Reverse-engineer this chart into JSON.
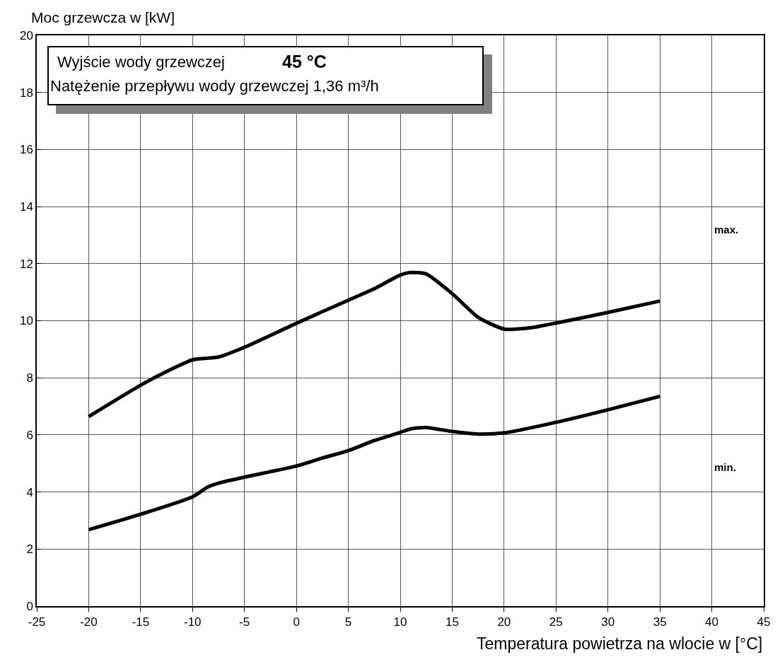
{
  "chart_data": {
    "type": "line",
    "xlabel": "Temperatura powietrza na wlocie w [°C]",
    "ylabel": "Moc grzewcza w [kW]",
    "series": [
      {
        "color": "#000000",
        "x": [
          -20,
          -15,
          -12.5,
          -10,
          -8.5,
          -7.5,
          -5,
          0,
          5,
          7.5,
          10,
          11,
          12.5,
          15,
          17.5,
          20,
          22.5,
          25,
          30,
          35
        ],
        "values": [
          6.64,
          7.74,
          8.22,
          8.63,
          8.69,
          8.73,
          9.07,
          9.91,
          10.72,
          11.12,
          11.6,
          11.69,
          11.64,
          10.95,
          10.12,
          9.71,
          9.75,
          9.92,
          10.29,
          10.69
        ]
      },
      {
        "color": "#000000",
        "x": [
          -20,
          -15,
          -10,
          -8.5,
          -7.5,
          -5,
          0,
          2.5,
          5,
          7.5,
          10,
          11,
          12.5,
          15,
          17.5,
          20,
          25,
          30,
          35
        ],
        "values": [
          2.68,
          3.22,
          3.83,
          4.18,
          4.31,
          4.52,
          4.91,
          5.19,
          5.45,
          5.8,
          6.09,
          6.21,
          6.26,
          6.12,
          6.03,
          6.07,
          6.44,
          6.88,
          7.35
        ]
      }
    ],
    "annotations": [
      "Wyjście wody grzewczej",
      "45 °C",
      "Natężenie przepływu wody grzewczej 1,36 m³/h",
      "max.",
      "min."
    ],
    "xlim": [
      -25,
      45
    ],
    "xticks": [
      -25,
      -20,
      -15,
      -10,
      -5,
      0,
      5,
      10,
      15,
      20,
      25,
      30,
      35,
      40,
      45
    ],
    "ylim": [
      0,
      20
    ],
    "yticks": [
      0,
      2,
      4,
      6,
      8,
      10,
      12,
      14,
      16,
      18,
      20
    ],
    "grid": true,
    "marker": "none",
    "line_style": "solid"
  }
}
